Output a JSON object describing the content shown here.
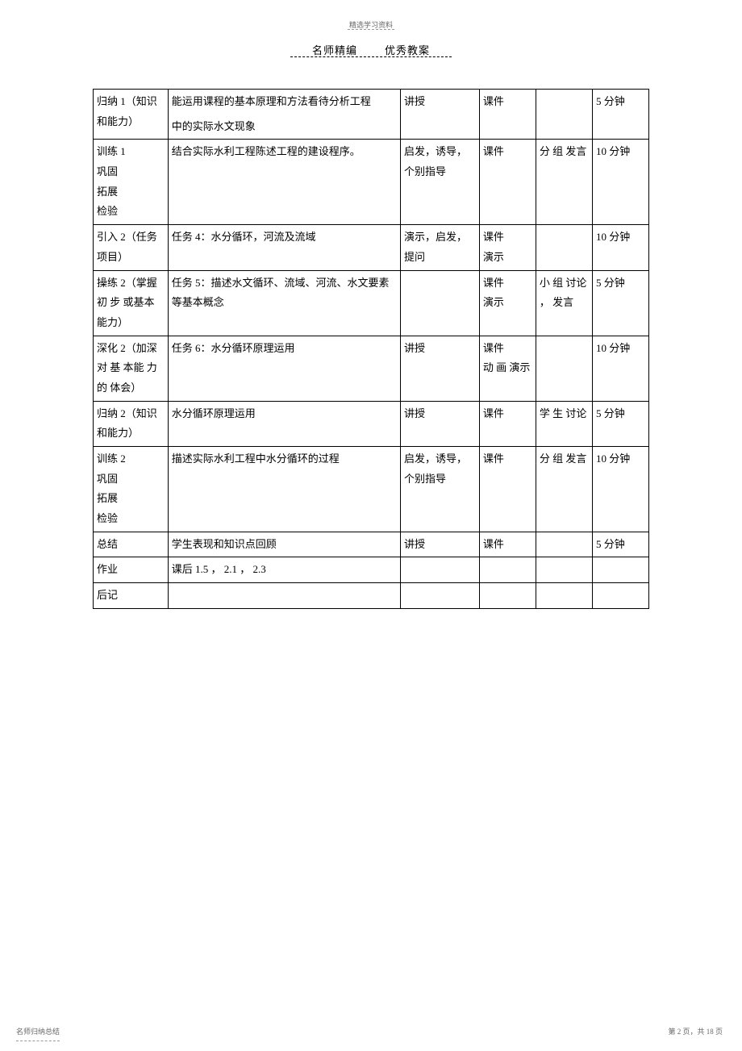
{
  "header": {
    "top_label": "精选学习资料",
    "subtitle_left": "名师精编",
    "subtitle_right": "优秀教案"
  },
  "footer": {
    "left": "名师归纳总结",
    "right": "第 2 页，共 18 页"
  },
  "table": {
    "rows": [
      {
        "c1": "归纳  1（知识和能力）",
        "c2a": "能运用课程的基本原理和方法看待分析工程",
        "c2b": "中的实际水文现象",
        "c3": "讲授",
        "c4": "课件",
        "c5": "",
        "c6": "5 分钟"
      },
      {
        "c1": "训练 1\n巩固\n拓展\n检验",
        "c2": "结合实际水利工程陈述工程的建设程序。",
        "c3": "启发，诱导，个别指导",
        "c4": "课件",
        "c5": "分 组 发言",
        "c6": "10 分钟"
      },
      {
        "c1": "引入  2（任务项目）",
        "c2": "任务 4：水分循环，河流及流域",
        "c3": "演示，启发，提问",
        "c4": "课件\n演示",
        "c5": "",
        "c6": "10 分钟"
      },
      {
        "c1": "操练  2（掌握 初 步 或基本能力）",
        "c2": "任务 5：描述水文循环、流域、河流、水文要素等基本概念",
        "c3": "",
        "c4": "课件\n演示",
        "c5": "小 组 讨论 ， 发言",
        "c6": "5 分钟"
      },
      {
        "c1": "深化  2（加深 对 基 本能 力 的 体会）",
        "c2": "任务 6：水分循环原理运用",
        "c3": "讲授",
        "c4": "课件\n动 画 演示",
        "c5": "",
        "c6": "10 分钟"
      },
      {
        "c1": "归纳  2（知识和能力）",
        "c2": "水分循环原理运用",
        "c3": "讲授",
        "c4": "课件",
        "c5": "学 生 讨论",
        "c6": "5 分钟"
      },
      {
        "c1": "训练 2\n巩固\n拓展\n检验",
        "c2": "描述实际水利工程中水分循环的过程",
        "c3": "启发，诱导，个别指导",
        "c4": "课件",
        "c5": "分 组 发言",
        "c6": "10 分钟"
      },
      {
        "c1": "总结",
        "c2": "学生表现和知识点回顾",
        "c3": "讲授",
        "c4": "课件",
        "c5": "",
        "c6": "5 分钟"
      },
      {
        "c1": "作业",
        "c2": "课后 1.5    ， 2.1 ， 2.3",
        "c3": "",
        "c4": "",
        "c5": "",
        "c6": ""
      },
      {
        "c1": "后记",
        "c2": "",
        "c3": "",
        "c4": "",
        "c5": "",
        "c6": ""
      }
    ]
  }
}
